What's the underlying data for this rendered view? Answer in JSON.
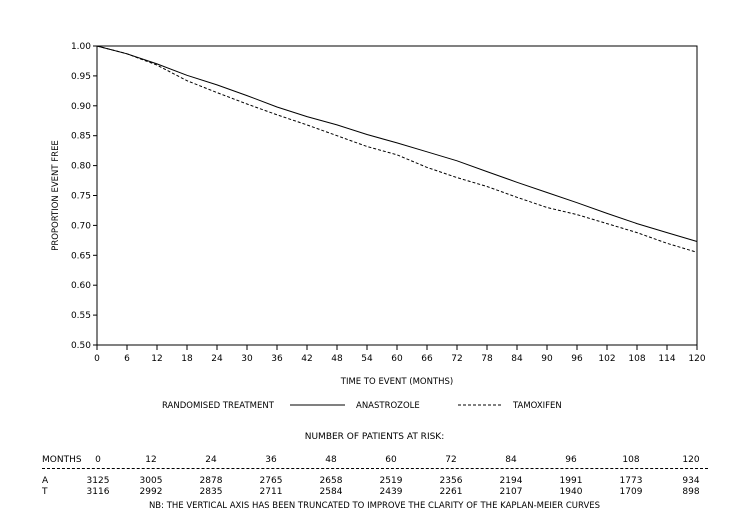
{
  "chart_data": {
    "type": "line",
    "xlabel": "TIME TO EVENT (MONTHS)",
    "ylabel": "PROPORTION EVENT FREE",
    "xlim": [
      0,
      120
    ],
    "ylim": [
      0.5,
      1.0
    ],
    "x_ticks": [
      "0",
      "6",
      "12",
      "18",
      "24",
      "30",
      "36",
      "42",
      "48",
      "54",
      "60",
      "66",
      "72",
      "78",
      "84",
      "90",
      "96",
      "102",
      "108",
      "114",
      "120"
    ],
    "y_ticks": [
      "0.50",
      "0.55",
      "0.60",
      "0.65",
      "0.70",
      "0.75",
      "0.80",
      "0.85",
      "0.90",
      "0.95",
      "1.00"
    ],
    "grid": false,
    "legend_title": "RANDOMISED TREATMENT",
    "series": [
      {
        "name": "ANASTROZOLE",
        "style": "solid",
        "x": [
          0,
          6,
          12,
          18,
          24,
          30,
          36,
          42,
          48,
          54,
          60,
          66,
          72,
          78,
          84,
          90,
          96,
          102,
          108,
          114,
          120
        ],
        "y": [
          1.0,
          0.987,
          0.97,
          0.951,
          0.935,
          0.917,
          0.898,
          0.882,
          0.868,
          0.852,
          0.838,
          0.823,
          0.808,
          0.79,
          0.772,
          0.755,
          0.738,
          0.72,
          0.703,
          0.688,
          0.673
        ]
      },
      {
        "name": "TAMOXIFEN",
        "style": "dashed",
        "x": [
          0,
          6,
          12,
          18,
          24,
          30,
          36,
          42,
          48,
          54,
          60,
          66,
          72,
          78,
          84,
          90,
          96,
          102,
          108,
          114,
          120
        ],
        "y": [
          1.0,
          0.987,
          0.968,
          0.942,
          0.922,
          0.903,
          0.885,
          0.868,
          0.85,
          0.832,
          0.818,
          0.797,
          0.78,
          0.765,
          0.747,
          0.73,
          0.718,
          0.703,
          0.688,
          0.67,
          0.655
        ]
      }
    ]
  },
  "risk_table": {
    "title": "NUMBER OF PATIENTS AT RISK:",
    "header_label": "MONTHS",
    "months": [
      "0",
      "12",
      "24",
      "36",
      "48",
      "60",
      "72",
      "84",
      "96",
      "108",
      "120"
    ],
    "rows": [
      {
        "label": "A",
        "values": [
          "3125",
          "3005",
          "2878",
          "2765",
          "2658",
          "2519",
          "2356",
          "2194",
          "1991",
          "1773",
          "934"
        ]
      },
      {
        "label": "T",
        "values": [
          "3116",
          "2992",
          "2835",
          "2711",
          "2584",
          "2439",
          "2261",
          "2107",
          "1940",
          "1709",
          "898"
        ]
      }
    ],
    "footnote": "NB: THE VERTICAL AXIS HAS BEEN TRUNCATED TO IMPROVE THE CLARITY OF THE KAPLAN-MEIER CURVES"
  }
}
